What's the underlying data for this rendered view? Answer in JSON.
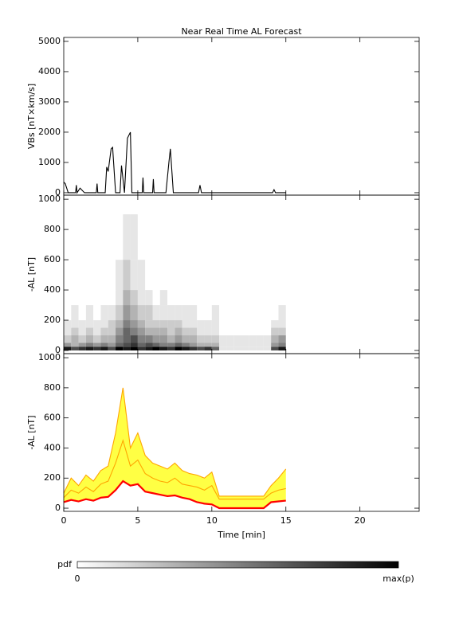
{
  "chart_data": [
    {
      "type": "line",
      "title": "Near Real Time AL Forecast",
      "ylabel": "VBs [nT×km/s]",
      "xlim": [
        0,
        24
      ],
      "xticks": [
        0,
        5,
        10,
        15,
        20
      ],
      "ylim": [
        -80,
        5130
      ],
      "yticks": [
        0,
        1000,
        2000,
        3000,
        4000,
        5000
      ],
      "x": [
        0,
        0.1,
        0.3,
        0.8,
        0.85,
        0.9,
        1.1,
        1.2,
        1.4,
        2.2,
        2.25,
        2.3,
        2.8,
        2.9,
        3.0,
        3.2,
        3.3,
        3.5,
        3.8,
        3.9,
        4.1,
        4.3,
        4.5,
        4.6,
        4.8,
        5.3,
        5.35,
        5.4,
        6.0,
        6.05,
        6.1,
        6.9,
        7.1,
        7.2,
        7.4,
        7.6,
        9.1,
        9.2,
        9.3,
        14.1,
        14.2,
        14.3,
        15
      ],
      "series": [
        {
          "color": "#000000",
          "values": [
            350,
            300,
            0,
            0,
            250,
            0,
            150,
            100,
            0,
            0,
            300,
            0,
            0,
            850,
            700,
            1450,
            1500,
            0,
            0,
            900,
            0,
            1800,
            2000,
            0,
            0,
            0,
            500,
            0,
            0,
            450,
            0,
            0,
            1000,
            1450,
            0,
            0,
            0,
            250,
            0,
            0,
            100,
            0,
            0
          ]
        }
      ]
    },
    {
      "type": "heatmap",
      "ylabel": "-AL [nT]",
      "xlim": [
        0,
        24
      ],
      "xticks": [
        0,
        5,
        10,
        15,
        20
      ],
      "ylim": [
        -21,
        1027
      ],
      "yticks": [
        0,
        200,
        400,
        600,
        800,
        1000
      ],
      "xbins": [
        0,
        0.5,
        1,
        1.5,
        2,
        2.5,
        3,
        3.5,
        4,
        4.5,
        5,
        5.5,
        6,
        6.5,
        7,
        7.5,
        8,
        8.5,
        9,
        9.5,
        10,
        10.5,
        11,
        11.5,
        12,
        12.5,
        13,
        13.5,
        14,
        14.5,
        15
      ],
      "ybins": [
        0,
        25,
        50,
        100,
        150,
        200,
        300,
        400,
        600,
        900
      ],
      "z": [
        [
          0.9,
          0.7,
          0.8,
          0.9,
          0.8,
          0.9,
          0.7,
          1,
          0.9,
          1,
          0.8,
          0.9,
          1,
          0.9,
          0.8,
          1,
          0.9,
          0.8,
          0.7,
          0.8,
          0.6,
          0.1,
          0.1,
          0.1,
          0.1,
          0.1,
          0.1,
          0.1,
          0.7,
          0.9
        ],
        [
          0.4,
          0.3,
          0.4,
          0.5,
          0.4,
          0.5,
          0.4,
          0.6,
          0.7,
          0.8,
          0.6,
          0.7,
          0.6,
          0.5,
          0.5,
          0.6,
          0.5,
          0.4,
          0.3,
          0.3,
          0.3,
          0.1,
          0.1,
          0.1,
          0.1,
          0.1,
          0.1,
          0.1,
          0.4,
          0.5
        ],
        [
          0.2,
          0.3,
          0.2,
          0.3,
          0.2,
          0.3,
          0.3,
          0.5,
          0.6,
          0.7,
          0.5,
          0.5,
          0.4,
          0.4,
          0.3,
          0.4,
          0.3,
          0.3,
          0.2,
          0.2,
          0.2,
          0.1,
          0.1,
          0.1,
          0.1,
          0.1,
          0.1,
          0.1,
          0.3,
          0.4
        ],
        [
          0.1,
          0.2,
          0.1,
          0.2,
          0.1,
          0.2,
          0.2,
          0.4,
          0.6,
          0.5,
          0.4,
          0.3,
          0.3,
          0.3,
          0.2,
          0.3,
          0.2,
          0.2,
          0.1,
          0.1,
          0.1,
          0,
          0,
          0,
          0,
          0,
          0,
          0,
          0.2,
          0.2
        ],
        [
          0.1,
          0.1,
          0.1,
          0.1,
          0.1,
          0.1,
          0.2,
          0.3,
          0.5,
          0.4,
          0.3,
          0.2,
          0.2,
          0.2,
          0.2,
          0.2,
          0.1,
          0.1,
          0.1,
          0.1,
          0.1,
          0,
          0,
          0,
          0,
          0,
          0,
          0,
          0.1,
          0.1
        ],
        [
          0,
          0.1,
          0,
          0.1,
          0,
          0.1,
          0.1,
          0.2,
          0.4,
          0.3,
          0.2,
          0.2,
          0.1,
          0.1,
          0.1,
          0.1,
          0.1,
          0.1,
          0,
          0,
          0.1,
          0,
          0,
          0,
          0,
          0,
          0,
          0,
          0,
          0.1
        ],
        [
          0,
          0,
          0,
          0,
          0,
          0,
          0,
          0.1,
          0.3,
          0.2,
          0.1,
          0.1,
          0,
          0.1,
          0,
          0,
          0,
          0,
          0,
          0,
          0,
          0,
          0,
          0,
          0,
          0,
          0,
          0,
          0,
          0
        ],
        [
          0,
          0,
          0,
          0,
          0,
          0,
          0,
          0.1,
          0.2,
          0.1,
          0.1,
          0,
          0,
          0,
          0,
          0,
          0,
          0,
          0,
          0,
          0,
          0,
          0,
          0,
          0,
          0,
          0,
          0,
          0,
          0
        ],
        [
          0,
          0,
          0,
          0,
          0,
          0,
          0,
          0,
          0.1,
          0.1,
          0,
          0,
          0,
          0,
          0,
          0,
          0,
          0,
          0,
          0,
          0,
          0,
          0,
          0,
          0,
          0,
          0,
          0,
          0,
          0
        ]
      ]
    },
    {
      "type": "line",
      "ylabel": "-AL [nT]",
      "xlabel": "Time [min]",
      "xlim": [
        0,
        24
      ],
      "xticks": [
        0,
        5,
        10,
        15,
        20
      ],
      "ylim": [
        -21,
        1027
      ],
      "yticks": [
        0,
        200,
        400,
        600,
        800,
        1000
      ],
      "fill_color": "#ffff44",
      "x": [
        0,
        0.5,
        1,
        1.5,
        2,
        2.5,
        3,
        3.5,
        4,
        4.5,
        5,
        5.5,
        6,
        6.5,
        7,
        7.5,
        8,
        8.5,
        9,
        9.5,
        10,
        10.5,
        11,
        11.5,
        12,
        12.5,
        13,
        13.5,
        14,
        14.5,
        15
      ],
      "series": [
        {
          "color": "#ffa500",
          "values": [
            100,
            200,
            150,
            220,
            180,
            250,
            280,
            500,
            800,
            400,
            500,
            350,
            300,
            280,
            260,
            300,
            250,
            230,
            220,
            200,
            240,
            80,
            80,
            80,
            80,
            80,
            80,
            80,
            150,
            200,
            260
          ]
        },
        {
          "color": "#ffa500",
          "values": [
            70,
            120,
            100,
            140,
            110,
            160,
            180,
            300,
            450,
            280,
            320,
            230,
            200,
            180,
            170,
            200,
            160,
            150,
            140,
            120,
            150,
            60,
            60,
            60,
            60,
            60,
            60,
            60,
            100,
            120,
            130
          ]
        },
        {
          "color": "#ff0000",
          "values": [
            40,
            55,
            45,
            60,
            50,
            70,
            75,
            120,
            180,
            150,
            160,
            110,
            100,
            90,
            80,
            85,
            70,
            60,
            40,
            30,
            25,
            0,
            0,
            0,
            0,
            0,
            0,
            0,
            40,
            45,
            50
          ]
        }
      ]
    }
  ],
  "colorbar": {
    "label": "pdf",
    "min_label": "0",
    "max_label": "max(p)"
  }
}
